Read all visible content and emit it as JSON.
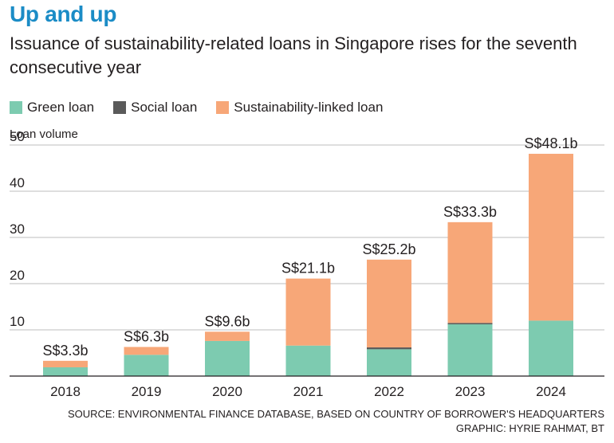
{
  "title": "Up and up",
  "subtitle": "Issuance of sustainability-related loans in Singapore rises for the seventh consecutive year",
  "source": "SOURCE: ENVIRONMENTAL FINANCE DATABASE, BASED ON COUNTRY OF BORROWER'S HEADQUARTERS",
  "credit": "GRAPHIC: HYRIE RAHMAT, BT",
  "colors": {
    "green": "#7dcbb0",
    "social": "#5a5a5a",
    "sustainability": "#f7a778",
    "title": "#1b8cc6",
    "grid": "#bdbdbd"
  },
  "chart_data": {
    "type": "bar",
    "stacked": true,
    "ylabel": "Loan volume",
    "ylim": [
      0,
      55
    ],
    "yticks": [
      10,
      20,
      30,
      40,
      50
    ],
    "grid": true,
    "legend_position": "top-left",
    "categories": [
      "2018",
      "2019",
      "2020",
      "2021",
      "2022",
      "2023",
      "2024"
    ],
    "series": [
      {
        "name": "Green loan",
        "color": "#7dcbb0",
        "values": [
          1.9,
          4.6,
          7.6,
          6.6,
          5.8,
          11.2,
          12.0
        ]
      },
      {
        "name": "Social loan",
        "color": "#5a5a5a",
        "values": [
          0,
          0,
          0,
          0,
          0.4,
          0.3,
          0
        ]
      },
      {
        "name": "Sustainability-linked loan",
        "color": "#f7a778",
        "values": [
          1.4,
          1.7,
          2.0,
          14.5,
          19.0,
          21.8,
          36.1
        ]
      }
    ],
    "totals_labels": [
      "S$3.3b",
      "S$6.3b",
      "S$9.6b",
      "S$21.1b",
      "S$25.2b",
      "S$33.3b",
      "S$48.1b"
    ]
  }
}
